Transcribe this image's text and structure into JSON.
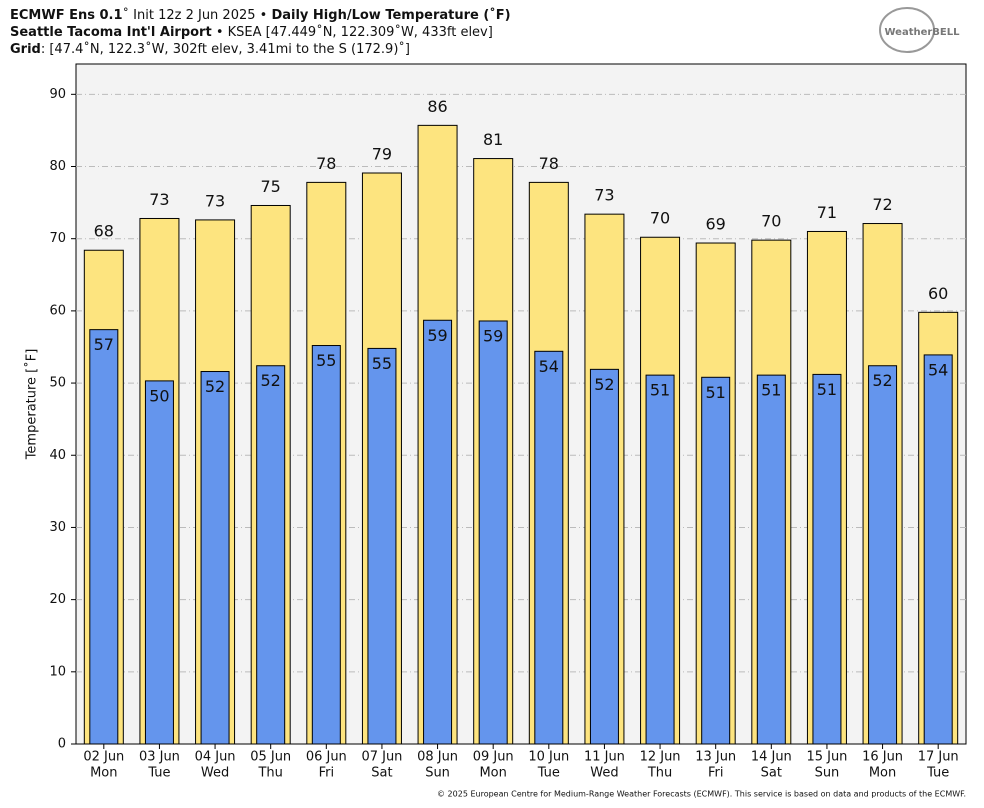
{
  "chart_data": {
    "type": "bar",
    "title_lines": [
      [
        {
          "text": "ECMWF Ens 0.1",
          "bold": true
        },
        {
          "text": "˚ Init 12z 2 Jun 2025 • ",
          "bold": false
        },
        {
          "text": "Daily High/Low Temperature (˚F)",
          "bold": true
        }
      ],
      [
        {
          "text": "Seattle Tacoma Int'l Airport",
          "bold": true
        },
        {
          "text": " • KSEA [47.449˚N, 122.309˚W, 433ft elev]",
          "bold": false
        }
      ],
      [
        {
          "text": "Grid",
          "bold": true
        },
        {
          "text": ": [47.4˚N, 122.3˚W, 302ft elev, 3.41mi to the S (172.9)˚]",
          "bold": false
        }
      ]
    ],
    "logo": "WeatherBELL",
    "credit": "© 2025 European Centre for Medium-Range Weather Forecasts (ECMWF). This service is based on data and products of the ECMWF.",
    "y_label": "Temperature [˚F]",
    "categories": [
      "02 Jun",
      "03 Jun",
      "04 Jun",
      "05 Jun",
      "06 Jun",
      "07 Jun",
      "08 Jun",
      "09 Jun",
      "10 Jun",
      "11 Jun",
      "12 Jun",
      "13 Jun",
      "14 Jun",
      "15 Jun",
      "16 Jun",
      "17 Jun"
    ],
    "weekdays": [
      "Mon",
      "Tue",
      "Wed",
      "Thu",
      "Fri",
      "Sat",
      "Sun",
      "Mon",
      "Tue",
      "Wed",
      "Thu",
      "Fri",
      "Sat",
      "Sun",
      "Mon",
      "Tue"
    ],
    "series": [
      {
        "color": "#fde47f",
        "values": [
          68.4,
          72.8,
          72.6,
          74.6,
          77.8,
          79.1,
          85.7,
          81.1,
          77.8,
          73.4,
          70.2,
          69.4,
          69.8,
          71.0,
          72.1,
          59.8
        ],
        "value_labels": [
          "68",
          "73",
          "73",
          "75",
          "78",
          "79",
          "86",
          "81",
          "78",
          "73",
          "70",
          "69",
          "70",
          "71",
          "72",
          "60"
        ]
      },
      {
        "color": "#6495ed",
        "values": [
          57.4,
          50.3,
          51.6,
          52.4,
          55.2,
          54.8,
          58.7,
          58.6,
          54.4,
          51.9,
          51.1,
          50.8,
          51.1,
          51.2,
          52.4,
          53.9
        ],
        "value_labels": [
          "57",
          "50",
          "52",
          "52",
          "55",
          "55",
          "59",
          "59",
          "54",
          "52",
          "51",
          "51",
          "51",
          "51",
          "52",
          "54"
        ]
      }
    ],
    "ylim": [
      0,
      94.2
    ],
    "yticks": [
      0,
      10,
      20,
      30,
      40,
      50,
      60,
      70,
      80,
      90
    ],
    "grid": true
  }
}
